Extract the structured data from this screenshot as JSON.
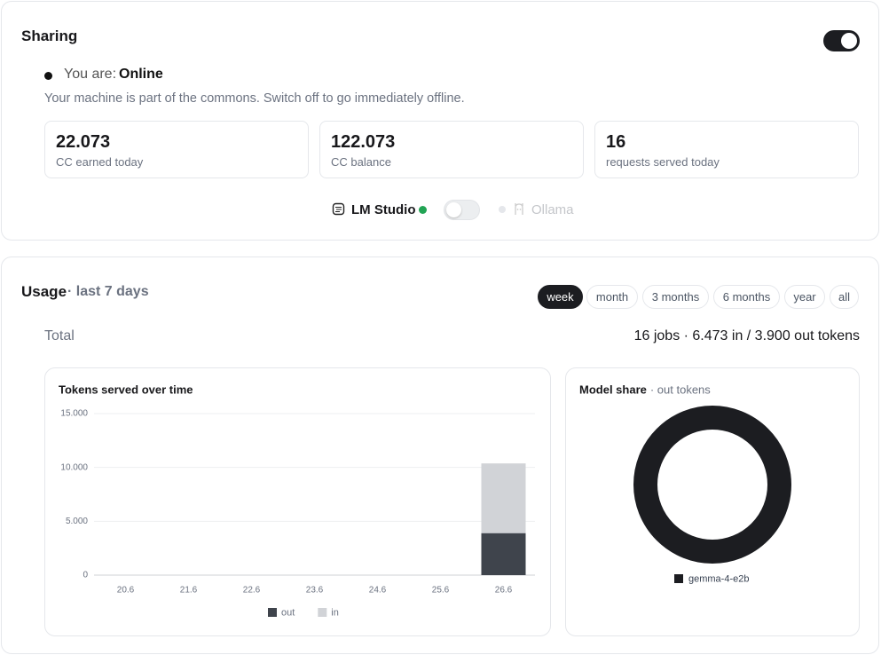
{
  "sharing": {
    "title": "Sharing",
    "status_prefix": "You are:",
    "status": "Online",
    "description": "Your machine is part of the commons. Switch off to go immediately offline.",
    "stats": [
      {
        "value": "22.073",
        "label": "CC earned today"
      },
      {
        "value": "122.073",
        "label": "CC balance"
      },
      {
        "value": "16",
        "label": "requests served today"
      }
    ],
    "backends": [
      "LM Studio",
      "Ollama"
    ]
  },
  "usage": {
    "title": "Usage",
    "period": "· last 7 days",
    "ranges": [
      "week",
      "month",
      "3 months",
      "6 months",
      "year",
      "all"
    ],
    "selected_range": 0,
    "total_label": "Total",
    "total_summary": "16 jobs · 6.473 in / 3.900 out tokens"
  },
  "chart_data": [
    {
      "type": "bar",
      "stacked": true,
      "title": "Tokens served over time",
      "categories": [
        "20.6",
        "21.6",
        "22.6",
        "23.6",
        "24.6",
        "25.6",
        "26.6"
      ],
      "series": [
        {
          "name": "out",
          "color": "#3f444c",
          "values": [
            0,
            0,
            0,
            0,
            0,
            0,
            3900
          ]
        },
        {
          "name": "in",
          "color": "#d1d3d7",
          "values": [
            0,
            0,
            0,
            0,
            0,
            0,
            6473
          ]
        }
      ],
      "ylim": [
        0,
        15000
      ],
      "yticks": [
        0,
        {
          "value": 5000,
          "label": "5.000"
        },
        {
          "value": 10000,
          "label": "10.000"
        },
        {
          "value": 15000,
          "label": "15.000"
        }
      ],
      "grid": true
    },
    {
      "type": "pie",
      "donut": true,
      "title": "Model share",
      "subtitle": "· out tokens",
      "categories": [
        "gemma-4-e2b"
      ],
      "values": [
        3900
      ],
      "colors": [
        "#1c1d21"
      ]
    }
  ]
}
